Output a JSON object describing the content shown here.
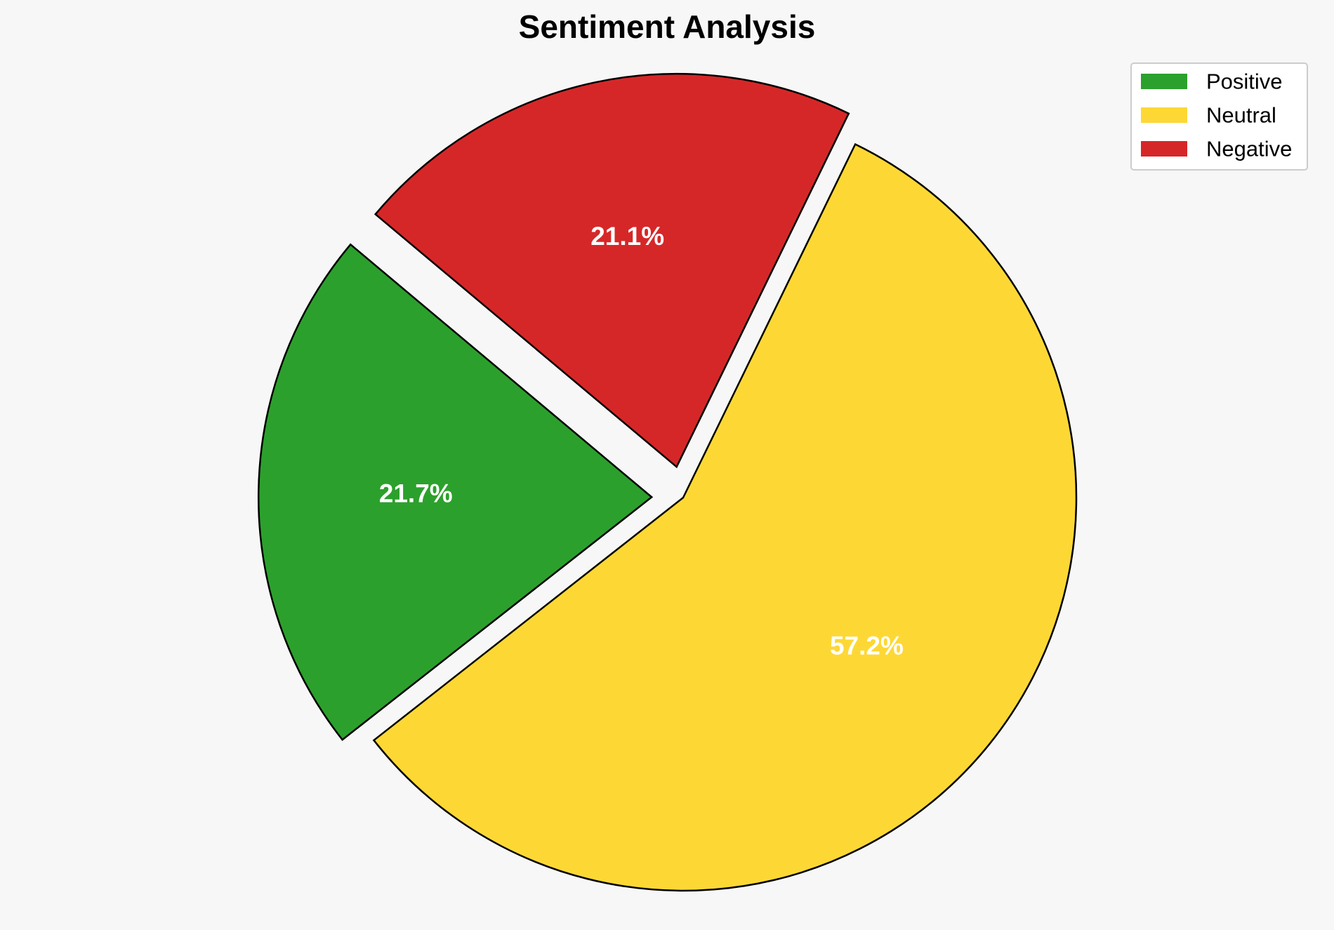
{
  "chart_data": {
    "type": "pie",
    "title": "Sentiment Analysis",
    "categories": [
      "Positive",
      "Neutral",
      "Negative"
    ],
    "values": [
      21.7,
      57.2,
      21.1
    ],
    "labels": [
      "21.7%",
      "57.2%",
      "21.1%"
    ],
    "colors": [
      "#2ca02c",
      "#fdd835",
      "#d62728"
    ],
    "exploded": [
      true,
      false,
      true
    ],
    "start_angle_deg": 140,
    "direction": "counterclockwise",
    "legend": {
      "placement": "top-right",
      "entries": [
        "Positive",
        "Neutral",
        "Negative"
      ]
    }
  }
}
